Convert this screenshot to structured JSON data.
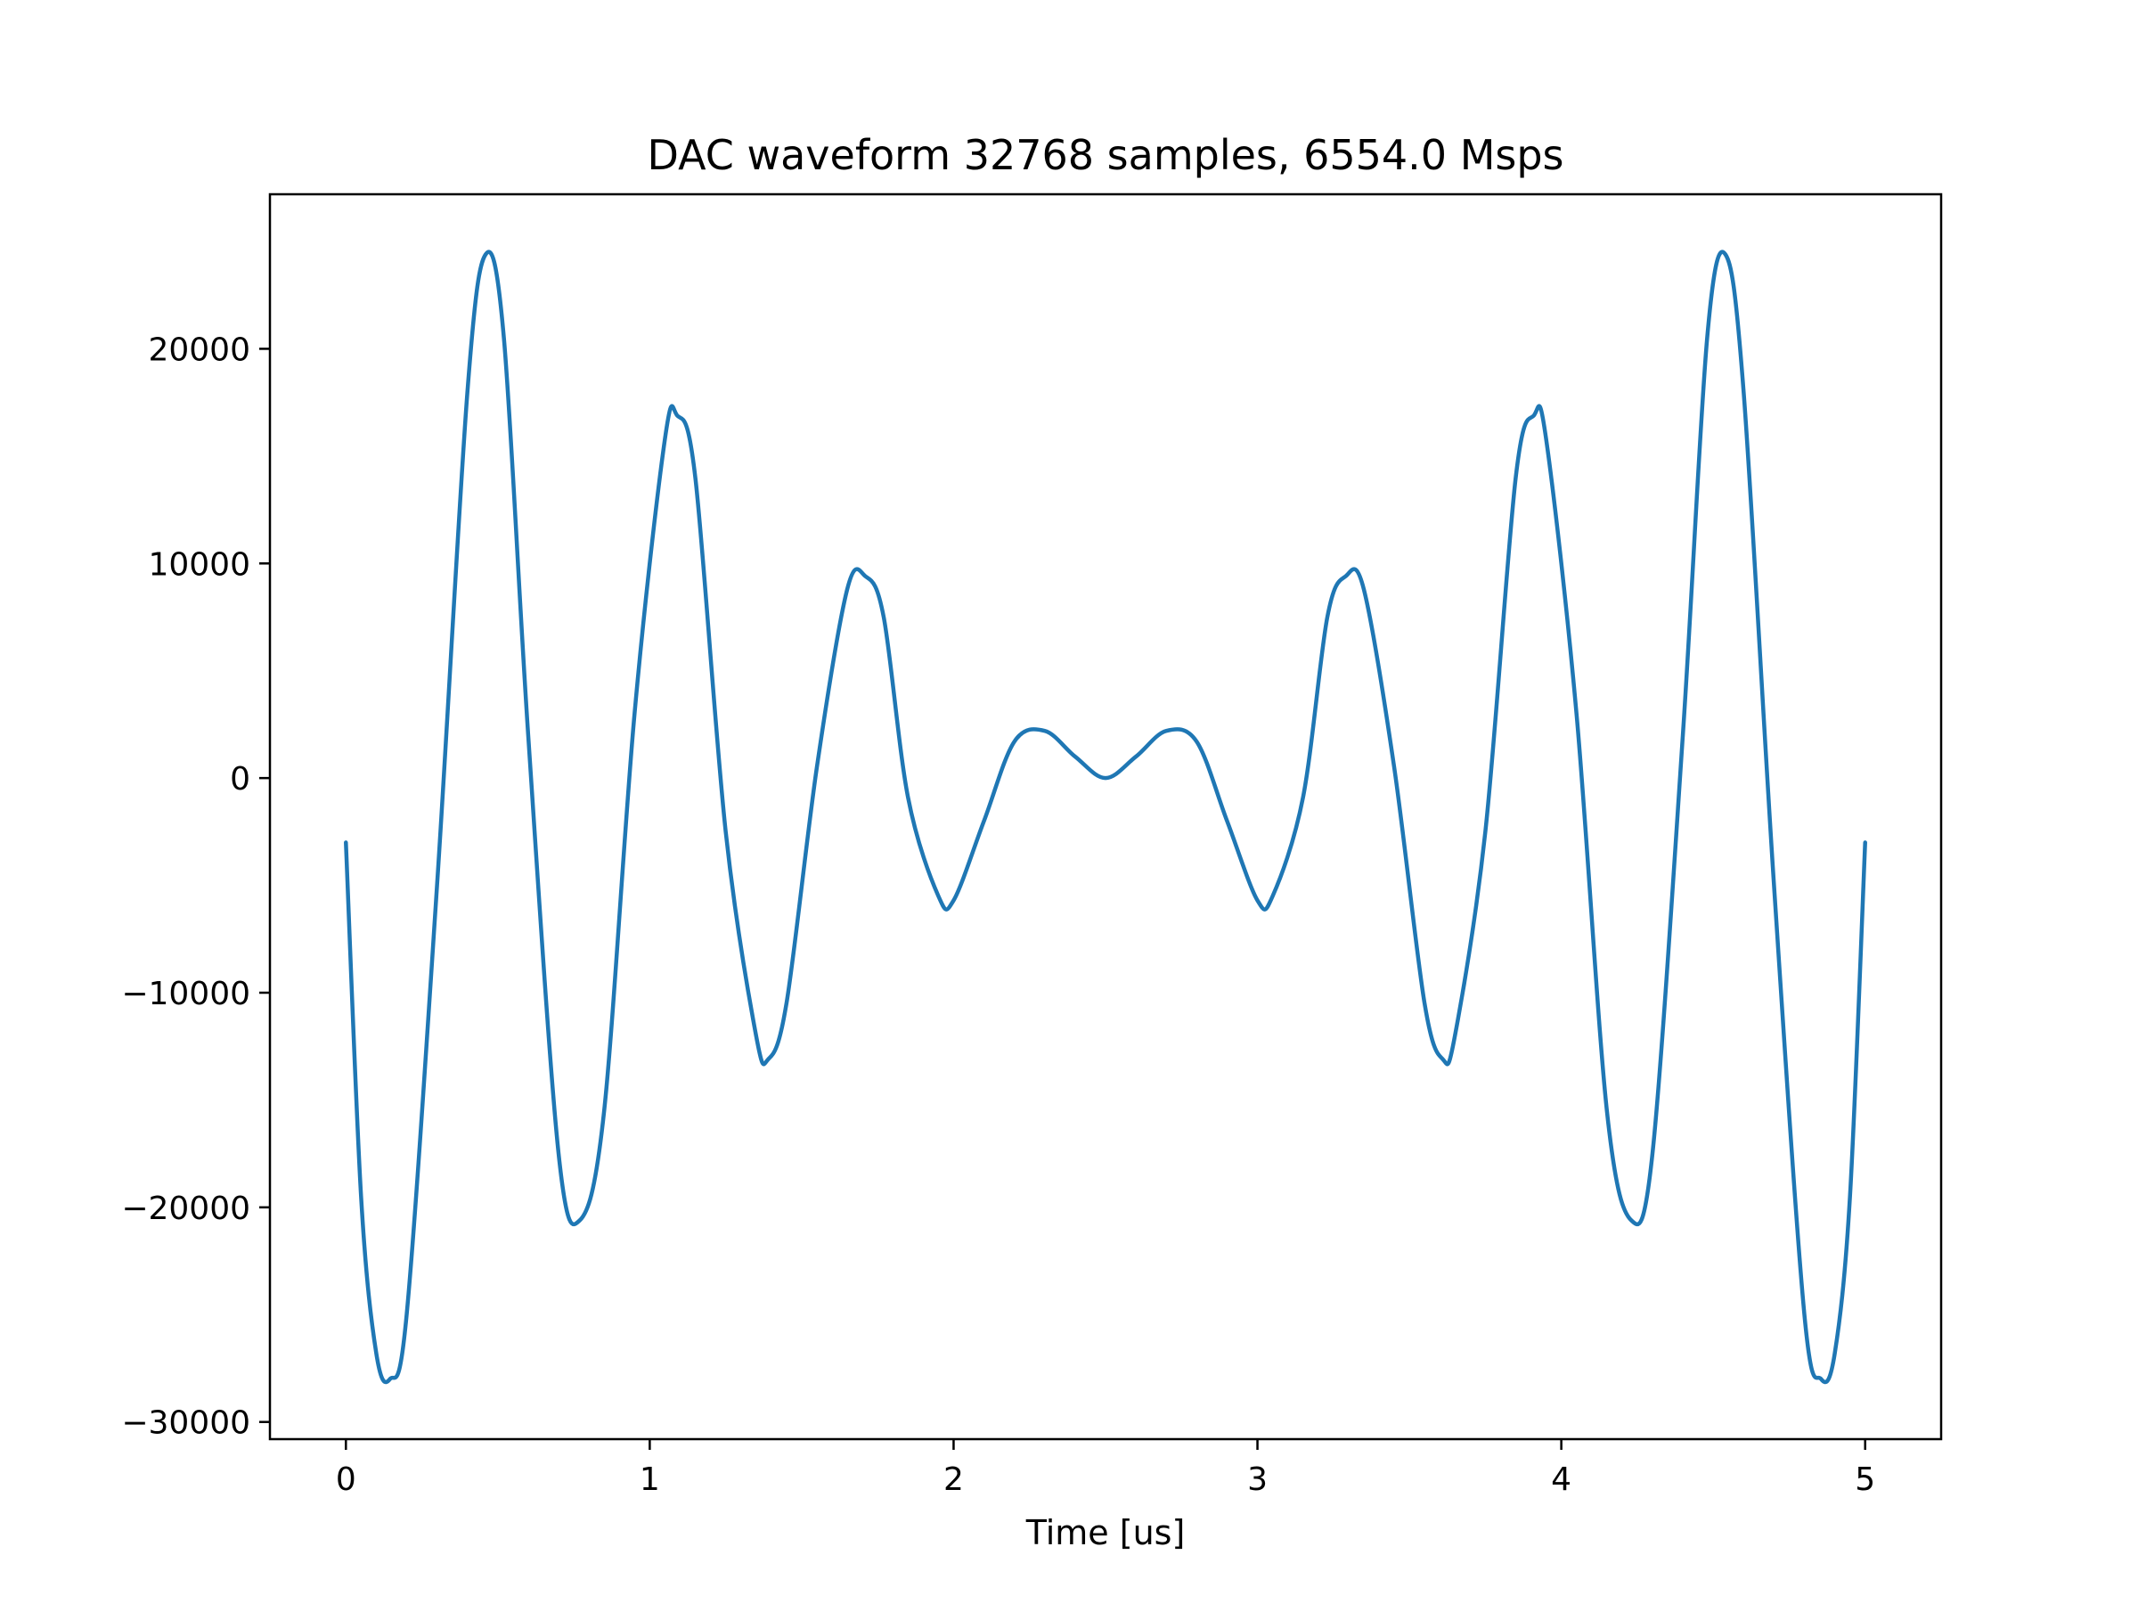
{
  "chart_data": {
    "type": "line",
    "title": "DAC waveform 32768 samples, 6554.0 Msps",
    "xlabel": "Time [us]",
    "ylabel": "",
    "xlim": [
      -0.25,
      5.25
    ],
    "ylim": [
      -30800,
      27200
    ],
    "grid": false,
    "xticks": [
      0,
      1,
      2,
      3,
      4,
      5
    ],
    "xtick_labels": [
      "0",
      "1",
      "2",
      "3",
      "4",
      "5"
    ],
    "yticks": [
      -30000,
      -20000,
      -10000,
      0,
      10000,
      20000
    ],
    "ytick_labels": [
      "−30000",
      "−20000",
      "−10000",
      "0",
      "10000",
      "20000"
    ],
    "series": [
      {
        "color": "#1f77b4",
        "x": [
          0.0,
          0.05,
          0.1,
          0.145,
          0.2,
          0.3,
          0.4,
          0.46,
          0.52,
          0.6,
          0.7,
          0.77,
          0.85,
          0.95,
          1.05,
          1.09,
          1.15,
          1.25,
          1.35,
          1.39,
          1.45,
          1.55,
          1.65,
          1.71,
          1.77,
          1.85,
          1.95,
          2.0,
          2.1,
          2.2,
          2.3,
          2.4,
          2.5,
          2.6,
          2.7,
          2.8,
          2.9,
          3.0,
          3.05,
          3.15,
          3.23,
          3.29,
          3.35,
          3.45,
          3.55,
          3.61,
          3.65,
          3.75,
          3.85,
          3.91,
          3.95,
          4.05,
          4.15,
          4.23,
          4.3,
          4.4,
          4.48,
          4.54,
          4.6,
          4.7,
          4.8,
          4.855,
          4.9,
          4.95,
          5.0
        ],
        "y": [
          -3000,
          -19500,
          -26800,
          -28000,
          -25000,
          -5000,
          18000,
          24400,
          20500,
          2000,
          -17500,
          -20600,
          -15500,
          3000,
          15800,
          16900,
          14000,
          -2500,
          -12000,
          -13100,
          -10500,
          500,
          8800,
          9400,
          7500,
          -900,
          -5500,
          -5700,
          -2000,
          1700,
          2200,
          1000,
          0,
          1000,
          2200,
          1700,
          -2000,
          -5700,
          -5500,
          -900,
          7500,
          9400,
          8800,
          500,
          -10500,
          -13100,
          -12000,
          -2500,
          14000,
          16900,
          15800,
          3000,
          -15500,
          -20600,
          -17500,
          2000,
          20500,
          24400,
          18000,
          -5000,
          -25000,
          -28000,
          -26800,
          -19500,
          -3000
        ]
      }
    ]
  }
}
